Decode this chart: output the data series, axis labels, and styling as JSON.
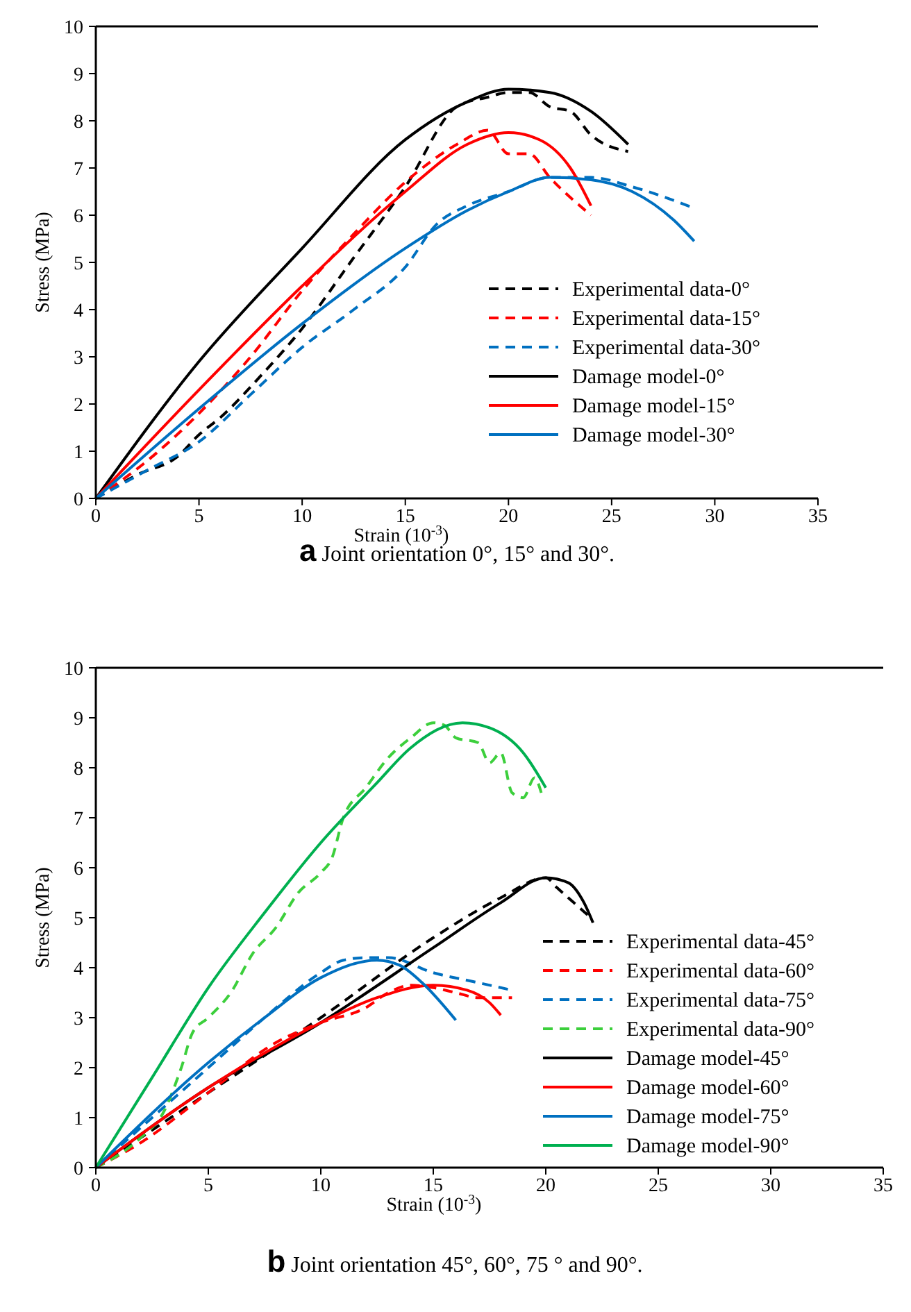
{
  "chart_data": [
    {
      "type": "line",
      "xlabel": "Strain (10$^{-3}$)",
      "ylabel": "Stress (MPa)",
      "xlim": [
        0,
        35
      ],
      "ylim": [
        0,
        10
      ],
      "xticks": [
        0,
        5,
        10,
        15,
        20,
        25,
        30,
        35
      ],
      "yticks": [
        0,
        1,
        2,
        3,
        4,
        5,
        6,
        7,
        8,
        9,
        10
      ],
      "legend": "bottom right",
      "annotations": [
        "a Joint orientation 0°, 15° and 30°."
      ],
      "series": [
        {
          "name": "Experimental data-0°",
          "color": "#000000",
          "line_style": "dashed",
          "x": [
            0,
            2,
            4,
            5,
            6,
            8,
            10,
            12.5,
            15,
            17.5,
            19,
            20,
            21,
            22,
            23,
            24,
            25.8
          ],
          "values": [
            0,
            0.5,
            0.9,
            1.35,
            1.7,
            2.6,
            3.6,
            5.1,
            6.6,
            8.3,
            8.5,
            8.6,
            8.6,
            8.3,
            8.2,
            7.7,
            7.35
          ]
        },
        {
          "name": "Experimental data-15°",
          "color": "#ff0000",
          "line_style": "dashed",
          "x": [
            0,
            2.5,
            5,
            7.5,
            10,
            12.5,
            15,
            17.5,
            19,
            20,
            21,
            22,
            24
          ],
          "values": [
            0,
            0.8,
            1.8,
            3.0,
            4.4,
            5.6,
            6.7,
            7.5,
            7.8,
            7.3,
            7.3,
            6.8,
            6.0
          ]
        },
        {
          "name": "Experimental data-30°",
          "color": "#0070c0",
          "line_style": "dashed",
          "x": [
            0,
            2.5,
            5,
            7.5,
            10,
            12.5,
            15,
            16.5,
            18,
            20,
            22,
            24,
            26,
            29
          ],
          "values": [
            0,
            0.6,
            1.2,
            2.2,
            3.2,
            4.0,
            4.9,
            5.8,
            6.2,
            6.5,
            6.8,
            6.8,
            6.6,
            6.15
          ]
        },
        {
          "name": "Damage model-0°",
          "color": "#000000",
          "line_style": "solid",
          "x": [
            0,
            5,
            10,
            15,
            18,
            20,
            22,
            24,
            25.8
          ],
          "values": [
            0,
            2.9,
            5.3,
            7.6,
            8.4,
            8.67,
            8.6,
            8.2,
            7.5
          ]
        },
        {
          "name": "Damage model-15°",
          "color": "#ff0000",
          "line_style": "solid",
          "x": [
            0,
            5,
            10,
            15,
            18,
            20,
            21.5,
            23,
            24
          ],
          "values": [
            0,
            2.3,
            4.5,
            6.5,
            7.5,
            7.75,
            7.6,
            7.0,
            6.2
          ]
        },
        {
          "name": "Damage model-30°",
          "color": "#0070c0",
          "line_style": "solid",
          "x": [
            0,
            5,
            10,
            15,
            18,
            20,
            22,
            24,
            26,
            28,
            29
          ],
          "values": [
            0,
            1.9,
            3.7,
            5.3,
            6.1,
            6.5,
            6.8,
            6.75,
            6.5,
            5.9,
            5.45
          ]
        }
      ]
    },
    {
      "type": "line",
      "xlabel": "Strain (10$^{-3}$)",
      "ylabel": "Stress (MPa)",
      "xlim": [
        0,
        35
      ],
      "ylim": [
        0,
        10
      ],
      "xticks": [
        0,
        5,
        10,
        15,
        20,
        25,
        30,
        35
      ],
      "yticks": [
        0,
        1,
        2,
        3,
        4,
        5,
        6,
        7,
        8,
        9,
        10
      ],
      "legend": "bottom right",
      "annotations": [
        "b Joint orientation 45°, 60°, 75 ° and 90°."
      ],
      "series": [
        {
          "name": "Experimental data-45°",
          "color": "#000000",
          "line_style": "dashed",
          "x": [
            0,
            5,
            10,
            15,
            18,
            20,
            20.5,
            21,
            22
          ],
          "values": [
            0,
            1.5,
            3.0,
            4.6,
            5.4,
            5.8,
            5.6,
            5.4,
            5.0
          ]
        },
        {
          "name": "Experimental data-60°",
          "color": "#ff0000",
          "line_style": "dashed",
          "x": [
            0,
            2,
            5,
            8,
            10,
            12,
            13,
            14,
            15,
            16,
            17,
            18.5
          ],
          "values": [
            0,
            0.5,
            1.5,
            2.5,
            2.9,
            3.2,
            3.5,
            3.65,
            3.6,
            3.5,
            3.4,
            3.4
          ]
        },
        {
          "name": "Experimental data-75°",
          "color": "#0070c0",
          "line_style": "dashed",
          "x": [
            0,
            5,
            7.5,
            10,
            11,
            12,
            13,
            15,
            17,
            18.5
          ],
          "values": [
            0,
            2.0,
            3.0,
            3.9,
            4.15,
            4.2,
            4.2,
            3.9,
            3.7,
            3.55
          ]
        },
        {
          "name": "Experimental data-90°",
          "color": "#3ccf3c",
          "line_style": "dashed",
          "x": [
            0,
            2,
            3,
            3.8,
            4.3,
            5,
            6,
            7,
            8,
            9,
            10,
            10.5,
            11,
            12,
            13,
            14,
            15,
            15.5,
            16,
            17,
            17.5,
            18,
            18.5,
            19,
            19.5,
            19.8
          ],
          "values": [
            0,
            0.6,
            1.1,
            2.0,
            2.7,
            3.0,
            3.5,
            4.3,
            4.8,
            5.5,
            5.9,
            6.2,
            7.0,
            7.6,
            8.2,
            8.6,
            8.9,
            8.85,
            8.6,
            8.5,
            8.1,
            8.3,
            7.5,
            7.4,
            7.8,
            7.5
          ]
        },
        {
          "name": "Damage model-45°",
          "color": "#000000",
          "line_style": "solid",
          "x": [
            0,
            5,
            10,
            15,
            18,
            20,
            21,
            21.7,
            22.1
          ],
          "values": [
            0,
            1.6,
            2.9,
            4.4,
            5.3,
            5.8,
            5.7,
            5.3,
            4.9
          ]
        },
        {
          "name": "Damage model-60°",
          "color": "#ff0000",
          "line_style": "solid",
          "x": [
            0,
            5,
            10,
            12.5,
            15,
            16.5,
            17.5,
            18
          ],
          "values": [
            0,
            1.6,
            2.9,
            3.4,
            3.65,
            3.55,
            3.3,
            3.05
          ]
        },
        {
          "name": "Damage model-75°",
          "color": "#0070c0",
          "line_style": "solid",
          "x": [
            0,
            5,
            7.5,
            10,
            12.5,
            13.5,
            14.5,
            16
          ],
          "values": [
            0,
            2.1,
            3.0,
            3.8,
            4.15,
            4.05,
            3.7,
            2.95
          ]
        },
        {
          "name": "Damage model-90°",
          "color": "#00b050",
          "line_style": "solid",
          "x": [
            0,
            2.5,
            5,
            7.5,
            10,
            12.5,
            14,
            16.3,
            17.5,
            19,
            20
          ],
          "values": [
            0,
            1.8,
            3.6,
            5.1,
            6.5,
            7.7,
            8.4,
            8.9,
            8.8,
            8.3,
            7.6
          ]
        }
      ]
    }
  ]
}
